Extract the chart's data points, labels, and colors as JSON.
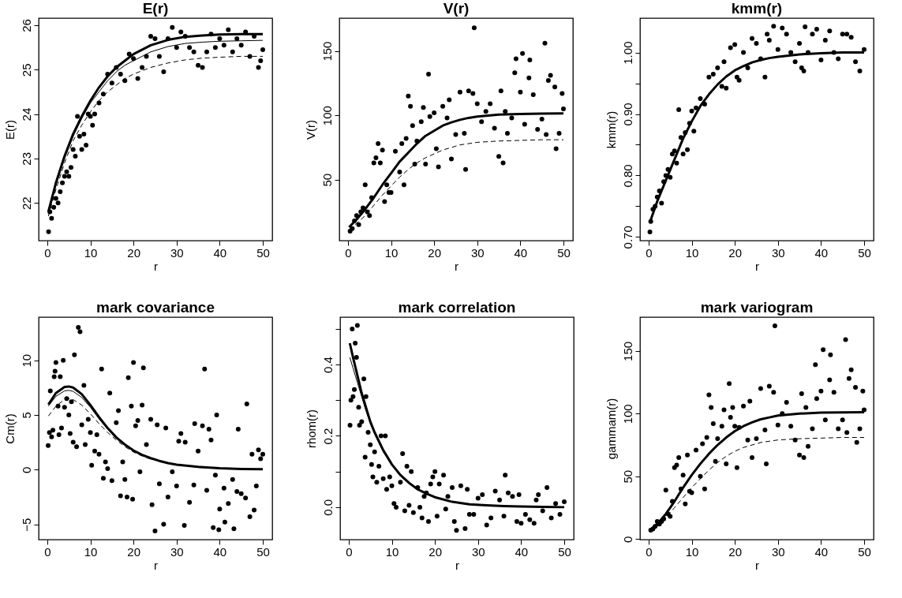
{
  "chart_data": [
    {
      "type": "scatter",
      "title": "E(r)",
      "xlabel": "r",
      "ylabel": "E(r)",
      "xlim": [
        -2,
        52.2
      ],
      "xticks": [
        0,
        10,
        20,
        30,
        40,
        50
      ],
      "ylim": [
        21.15,
        26.16
      ],
      "yticks": [
        22,
        23,
        24,
        25,
        26
      ],
      "series": [
        {
          "type": "scatter",
          "color": "#000000",
          "x": [
            0.3,
            0.6,
            1,
            1.5,
            2,
            2.5,
            3,
            3.5,
            4,
            4.5,
            5,
            5.5,
            6,
            6.5,
            7,
            7.5,
            8,
            8.5,
            9,
            9.5,
            10,
            10.5,
            11,
            12,
            13,
            14,
            15,
            16,
            17,
            18,
            19,
            20,
            21,
            22,
            23,
            24,
            25,
            26,
            27,
            28,
            29,
            30,
            31,
            32,
            33,
            34,
            35,
            36,
            37,
            38,
            39,
            40,
            41,
            42,
            43,
            44,
            45,
            46,
            47,
            48,
            49,
            49.5,
            50
          ],
          "values": [
            21.35,
            21.8,
            21.65,
            21.9,
            22.1,
            22.0,
            22.25,
            22.45,
            22.6,
            22.7,
            22.6,
            22.8,
            23.2,
            23.05,
            23.95,
            23.5,
            23.2,
            23.55,
            23.3,
            24.0,
            23.95,
            23.75,
            24.0,
            24.25,
            24.45,
            24.9,
            24.7,
            25.05,
            24.9,
            24.75,
            25.35,
            25.25,
            24.8,
            25.05,
            25.3,
            25.75,
            25.7,
            25.3,
            24.95,
            25.7,
            25.95,
            25.5,
            25.85,
            25.75,
            25.5,
            25.4,
            25.1,
            25.05,
            25.4,
            25.8,
            25.5,
            25.7,
            25.55,
            25.9,
            25.4,
            25.7,
            25.55,
            25.85,
            25.3,
            25.75,
            25.05,
            25.2,
            25.45
          ]
        },
        {
          "type": "line",
          "color": "#000000",
          "x": [
            0.25,
            2,
            4,
            6,
            8,
            10,
            12,
            14,
            16,
            18,
            20,
            24,
            28,
            32,
            36,
            40,
            45,
            50
          ],
          "values": [
            21.8,
            22.45,
            23.05,
            23.55,
            23.95,
            24.3,
            24.6,
            24.85,
            25.05,
            25.2,
            25.35,
            25.55,
            25.67,
            25.74,
            25.77,
            25.79,
            25.8,
            25.8
          ]
        },
        {
          "type": "line",
          "color": "#000000",
          "x": [
            0.25,
            2,
            4,
            6,
            8,
            10,
            12,
            14,
            16,
            18,
            20,
            24,
            28,
            32,
            36,
            40,
            45,
            50
          ],
          "values": [
            21.75,
            22.4,
            23.0,
            23.5,
            23.9,
            24.25,
            24.5,
            24.75,
            24.95,
            25.1,
            25.2,
            25.4,
            25.52,
            25.59,
            25.62,
            25.64,
            25.65,
            25.66
          ]
        },
        {
          "type": "line",
          "color": "#000000",
          "line_style": "dashed",
          "x": [
            0.25,
            2,
            4,
            6,
            8,
            10,
            12,
            14,
            16,
            18,
            20,
            24,
            28,
            32,
            36,
            40,
            45,
            50
          ],
          "values": [
            21.7,
            22.3,
            22.9,
            23.4,
            23.75,
            24.05,
            24.3,
            24.5,
            24.65,
            24.8,
            24.9,
            25.05,
            25.15,
            25.22,
            25.26,
            25.28,
            25.3,
            25.3
          ]
        }
      ]
    },
    {
      "type": "scatter",
      "title": "V(r)",
      "xlabel": "r",
      "ylabel": "V(r)",
      "xlim": [
        -2,
        52.2
      ],
      "xticks": [
        0,
        10,
        20,
        30,
        40,
        50
      ],
      "ylim": [
        2.6,
        175.5
      ],
      "yticks": [
        50,
        100,
        150
      ],
      "series": [
        {
          "type": "scatter",
          "color": "#000000",
          "x": [
            0.5,
            1,
            1.5,
            2,
            2.5,
            3,
            3.5,
            4,
            4.5,
            5,
            5.5,
            6,
            6.5,
            7,
            7.5,
            8,
            8.5,
            9,
            9.5,
            10,
            11,
            12,
            12.5,
            13,
            13.5,
            14,
            14.5,
            15,
            15.5,
            16,
            17,
            17.5,
            18,
            18.7,
            19,
            20,
            20.5,
            21,
            22,
            23,
            23.5,
            24,
            25,
            26,
            27,
            27.3,
            28,
            29,
            29.3,
            30,
            31,
            32,
            33,
            34,
            35,
            35.5,
            36,
            36.5,
            37,
            38,
            38.7,
            39,
            40,
            40.5,
            41,
            42,
            42.2,
            43,
            44,
            45,
            45.7,
            46,
            46.5,
            47,
            48,
            48.3,
            49,
            49.7,
            50
          ],
          "values": [
            10,
            12,
            18,
            22,
            15,
            25,
            28,
            46,
            25,
            22,
            36,
            63,
            67,
            78,
            63,
            73,
            33,
            46,
            40,
            40,
            72,
            56,
            78,
            46,
            82,
            115,
            107,
            92,
            62,
            80,
            95,
            106,
            62,
            132,
            99,
            102,
            74,
            60,
            107,
            98,
            112,
            66,
            85,
            118,
            86,
            58,
            119,
            117,
            168,
            109,
            95,
            103,
            109,
            90,
            68,
            119,
            63,
            103,
            86,
            98,
            133,
            144,
            118,
            148,
            93,
            129,
            143,
            116,
            89,
            97,
            156,
            85,
            127,
            131,
            122,
            74,
            86,
            117,
            105
          ]
        },
        {
          "type": "line",
          "color": "#000000",
          "x": [
            0.25,
            2,
            4,
            6,
            8,
            10,
            12,
            14,
            16,
            18,
            20,
            22,
            24,
            26,
            28,
            30,
            35,
            40,
            45,
            50
          ],
          "values": [
            13,
            19,
            27,
            36,
            46,
            55,
            64,
            71,
            78,
            84,
            88,
            92,
            94.5,
            96.5,
            98,
            99,
            100.5,
            101,
            101.3,
            101.5
          ]
        },
        {
          "type": "line",
          "color": "#000000",
          "line_style": "dashed",
          "x": [
            0.25,
            2,
            4,
            6,
            8,
            10,
            12,
            14,
            16,
            18,
            20,
            22,
            24,
            26,
            28,
            30,
            35,
            40,
            45,
            50
          ],
          "values": [
            11,
            16,
            22,
            30,
            38,
            45,
            52,
            58,
            63,
            67,
            70,
            73,
            75,
            77,
            78,
            79,
            80,
            80.5,
            81,
            81
          ]
        }
      ]
    },
    {
      "type": "scatter",
      "title": "kmm(r)",
      "xlabel": "r",
      "ylabel": "kmm(r)",
      "xlim": [
        -2,
        52.2
      ],
      "xticks": [
        0,
        10,
        20,
        30,
        40,
        50
      ],
      "ylim": [
        0.694,
        1.056
      ],
      "yticks": [
        {
          "value": 0.7,
          "label": "0.70"
        },
        {
          "value": 0.75,
          "label": null
        },
        {
          "value": 0.8,
          "label": "0.80"
        },
        {
          "value": 0.85,
          "label": null
        },
        {
          "value": 0.9,
          "label": "0.90"
        },
        {
          "value": 0.95,
          "label": null
        },
        {
          "value": 1.0,
          "label": "1.00"
        }
      ],
      "series": [
        {
          "type": "scatter",
          "color": "#000000",
          "x": [
            0.3,
            0.5,
            1,
            1.5,
            2,
            2.5,
            3,
            3.5,
            4,
            4.5,
            5,
            5.5,
            6,
            6.5,
            7,
            7.5,
            8,
            8.5,
            9,
            9.5,
            10,
            10.5,
            11,
            12,
            13,
            14,
            15,
            16,
            17,
            17.5,
            18,
            19,
            20,
            20.5,
            21,
            22,
            23,
            24,
            25,
            26,
            27,
            27.5,
            28,
            29,
            30,
            31,
            32,
            33,
            34,
            35,
            35.5,
            36,
            36.3,
            37,
            38,
            39,
            40,
            41,
            42,
            43,
            44,
            45,
            46,
            47,
            48,
            49,
            50
          ],
          "values": [
            0.708,
            0.725,
            0.745,
            0.75,
            0.765,
            0.775,
            0.755,
            0.79,
            0.8,
            0.81,
            0.797,
            0.835,
            0.84,
            0.82,
            0.907,
            0.862,
            0.835,
            0.87,
            0.842,
            0.885,
            0.905,
            0.872,
            0.91,
            0.925,
            0.916,
            0.96,
            0.965,
            0.975,
            0.945,
            0.985,
            0.942,
            1.008,
            1.013,
            0.96,
            0.955,
            1.0,
            0.975,
            1.023,
            1.015,
            0.99,
            0.96,
            1.03,
            1.02,
            1.043,
            1.005,
            1.04,
            1.03,
            1.0,
            0.985,
            1.015,
            0.975,
            0.97,
            1.042,
            1.0,
            1.03,
            1.038,
            0.988,
            1.02,
            1.035,
            1.0,
            0.99,
            1.03,
            1.03,
            1.025,
            0.985,
            0.97,
            1.005
          ]
        },
        {
          "type": "line",
          "color": "#000000",
          "x": [
            0.25,
            2,
            4,
            6,
            8,
            10,
            12,
            14,
            16,
            18,
            20,
            22,
            24,
            26,
            28,
            30,
            35,
            40,
            45,
            50
          ],
          "values": [
            0.723,
            0.758,
            0.792,
            0.826,
            0.86,
            0.888,
            0.913,
            0.932,
            0.948,
            0.961,
            0.971,
            0.978,
            0.984,
            0.988,
            0.991,
            0.993,
            0.997,
            0.999,
            1.0,
            1.0
          ]
        }
      ]
    },
    {
      "type": "scatter",
      "title": "mark covariance",
      "xlabel": "r",
      "ylabel": "Cm(r)",
      "xlim": [
        -2,
        52.2
      ],
      "xticks": [
        0,
        10,
        20,
        30,
        40,
        50
      ],
      "ylim": [
        -6.4,
        13.94
      ],
      "yticks": [
        -5,
        0,
        5,
        10
      ],
      "series": [
        {
          "type": "scatter",
          "color": "#000000",
          "x": [
            0.2,
            0.5,
            0.7,
            1,
            1.3,
            1.6,
            1.8,
            2,
            2.5,
            2.7,
            3,
            3.3,
            3.7,
            4,
            4.5,
            5,
            5.3,
            5.6,
            6,
            6.3,
            6.8,
            7.2,
            7.6,
            8,
            8.5,
            8.8,
            9.5,
            10,
            10.3,
            11,
            11.5,
            12,
            12.6,
            13,
            13.5,
            14,
            14.5,
            15,
            16,
            16.5,
            17,
            17.5,
            18,
            18.5,
            18.8,
            19.5,
            19.8,
            20,
            20.5,
            21,
            21.5,
            22,
            22.3,
            23,
            24,
            24.3,
            25,
            25.5,
            26,
            27,
            27.5,
            28,
            29,
            30,
            30.5,
            31,
            31.8,
            32,
            33,
            34,
            34.2,
            35,
            36,
            36.5,
            37,
            37.5,
            38,
            38.5,
            39,
            39.3,
            39.8,
            40,
            41,
            41.2,
            42,
            43,
            43.3,
            44,
            44.3,
            45,
            46,
            46.3,
            47,
            47.5,
            48,
            48.5,
            49,
            49.5,
            50
          ],
          "values": [
            2.2,
            3.4,
            7.2,
            3.0,
            3.6,
            8.5,
            9.0,
            9.8,
            5.8,
            3.2,
            8.5,
            3.8,
            10.0,
            5.7,
            6.5,
            5.0,
            3.3,
            6.2,
            2.5,
            10.5,
            2.1,
            13.0,
            12.6,
            4.1,
            7.7,
            2.3,
            4.6,
            3.4,
            0.4,
            1.7,
            3.2,
            1.4,
            9.2,
            -0.8,
            0.7,
            0.1,
            7.0,
            -1.0,
            4.3,
            5.4,
            -2.4,
            0.7,
            -0.9,
            -2.5,
            8.4,
            5.8,
            -2.7,
            9.8,
            4.0,
            4.5,
            -0.2,
            5.9,
            9.3,
            2.3,
            4.6,
            -3.2,
            -5.6,
            4.1,
            -1.3,
            -5.0,
            3.8,
            -2.5,
            -0.2,
            -1.5,
            2.6,
            3.3,
            -5.1,
            2.5,
            -3.0,
            -1.4,
            4.2,
            1.7,
            4.0,
            9.2,
            -1.9,
            3.7,
            2.7,
            -5.3,
            -0.5,
            5.0,
            -5.5,
            -3.6,
            -1.7,
            -4.8,
            -3.1,
            -0.9,
            -5.4,
            -2.0,
            3.7,
            -2.2,
            -2.6,
            6.0,
            -4.3,
            1.4,
            -3.7,
            -1.5,
            1.8,
            1.0,
            1.4
          ]
        },
        {
          "type": "line",
          "color": "#000000",
          "x": [
            0.25,
            2,
            4,
            5,
            6,
            8,
            10,
            12,
            14,
            16,
            18,
            20,
            22,
            24,
            26,
            28,
            30,
            35,
            40,
            45,
            50
          ],
          "values": [
            5.95,
            7.0,
            7.55,
            7.6,
            7.5,
            6.9,
            5.9,
            4.8,
            3.8,
            2.95,
            2.3,
            1.75,
            1.35,
            1.05,
            0.8,
            0.6,
            0.45,
            0.25,
            0.12,
            0.06,
            0.03
          ]
        },
        {
          "type": "line",
          "color": "#000000",
          "x": [
            0.25,
            2,
            4,
            5,
            6,
            8,
            10,
            12,
            14,
            16,
            18,
            20,
            22,
            24,
            26,
            28,
            30,
            35,
            40,
            45,
            50
          ],
          "values": [
            5.8,
            6.7,
            7.2,
            7.25,
            7.15,
            6.6,
            5.7,
            4.65,
            3.7,
            2.85,
            2.2,
            1.7,
            1.3,
            1.0,
            0.75,
            0.58,
            0.43,
            0.22,
            0.1,
            0.05,
            0.02
          ]
        },
        {
          "type": "line",
          "color": "#000000",
          "line_style": "dashed",
          "x": [
            0.25,
            2,
            4,
            5,
            6,
            8,
            10,
            12,
            14,
            16,
            18,
            20,
            22,
            24
          ],
          "values": [
            4.9,
            5.8,
            6.4,
            6.5,
            6.4,
            5.9,
            5.1,
            4.2,
            3.4,
            2.7,
            2.1,
            1.6,
            1.25,
            0.95
          ]
        }
      ]
    },
    {
      "type": "scatter",
      "title": "mark correlation",
      "xlabel": "r",
      "ylabel": "rhom(r)",
      "xlim": [
        -2,
        52.2
      ],
      "xticks": [
        0,
        10,
        20,
        30,
        40,
        50
      ],
      "ylim": [
        -0.091,
        0.533
      ],
      "yticks": [
        {
          "value": 0,
          "label": "0.0"
        },
        {
          "value": 0.1,
          "label": null
        },
        {
          "value": 0.2,
          "label": "0.2"
        },
        {
          "value": 0.3,
          "label": null
        },
        {
          "value": 0.4,
          "label": "0.4"
        },
        {
          "value": 0.5,
          "label": null
        }
      ],
      "series": [
        {
          "type": "scatter",
          "color": "#000000",
          "x": [
            0.3,
            0.5,
            0.8,
            1,
            1.3,
            1.5,
            1.8,
            2,
            2.3,
            2.5,
            3,
            3.5,
            3.8,
            4,
            4.5,
            5,
            5.3,
            5.6,
            6,
            6.5,
            7,
            7.5,
            8,
            8.5,
            8.8,
            9.5,
            10,
            10.5,
            11,
            12,
            12.5,
            13,
            13.5,
            14,
            14.5,
            15,
            16,
            16.5,
            17,
            17.5,
            18,
            18.5,
            19,
            19.5,
            20,
            20.5,
            21,
            22,
            22.5,
            23,
            24,
            24.5,
            25,
            26,
            27,
            27.5,
            28,
            29,
            30,
            31,
            32,
            33,
            34,
            35,
            36,
            36.3,
            37,
            38,
            39,
            39.5,
            40,
            41,
            42,
            43,
            43.5,
            44,
            45,
            46,
            47,
            48,
            49,
            50
          ],
          "values": [
            0.23,
            0.3,
            0.5,
            0.31,
            0.33,
            0.46,
            0.42,
            0.51,
            0.28,
            0.23,
            0.24,
            0.36,
            0.14,
            0.31,
            0.21,
            0.175,
            0.12,
            0.085,
            0.155,
            0.07,
            0.115,
            0.2,
            0.08,
            0.2,
            0.05,
            0.085,
            0.06,
            0.01,
            0.0,
            0.07,
            0.15,
            -0.01,
            0.115,
            0.005,
            0.1,
            -0.015,
            0.055,
            0.0,
            -0.03,
            0.03,
            0.04,
            -0.04,
            0.065,
            0.085,
            0.1,
            -0.025,
            0.065,
            0.09,
            -0.005,
            0.03,
            0.055,
            -0.04,
            -0.065,
            0.06,
            -0.06,
            0.05,
            -0.02,
            -0.02,
            0.025,
            0.035,
            -0.05,
            -0.03,
            0.045,
            0.02,
            -0.025,
            0.09,
            0.04,
            0.03,
            -0.04,
            0.035,
            -0.045,
            -0.02,
            -0.035,
            -0.045,
            0.02,
            0.035,
            -0.01,
            0.055,
            -0.03,
            0.01,
            -0.02,
            0.015
          ]
        },
        {
          "type": "line",
          "color": "#000000",
          "x": [
            0.25,
            1,
            2,
            3,
            4,
            5,
            6,
            8,
            10,
            12,
            14,
            16,
            18,
            20,
            24,
            28,
            32,
            36,
            40,
            45,
            50
          ],
          "values": [
            0.46,
            0.42,
            0.37,
            0.32,
            0.28,
            0.24,
            0.21,
            0.16,
            0.12,
            0.09,
            0.068,
            0.05,
            0.038,
            0.028,
            0.015,
            0.008,
            0.005,
            0.003,
            0.002,
            0.001,
            0.0
          ]
        },
        {
          "type": "line",
          "color": "#000000",
          "x": [
            0.25,
            1,
            2,
            3,
            4,
            5,
            6,
            8,
            10,
            12,
            14,
            16,
            18,
            20,
            24,
            28,
            32,
            36,
            40,
            45,
            50
          ],
          "values": [
            0.42,
            0.39,
            0.35,
            0.31,
            0.27,
            0.235,
            0.205,
            0.155,
            0.118,
            0.088,
            0.066,
            0.049,
            0.037,
            0.027,
            0.015,
            0.008,
            0.005,
            0.003,
            0.002,
            0.001,
            0.0
          ]
        }
      ]
    },
    {
      "type": "scatter",
      "title": "mark variogram",
      "xlabel": "r",
      "ylabel": "gammam(r)",
      "xlim": [
        -2,
        52.2
      ],
      "xticks": [
        0,
        10,
        20,
        30,
        40,
        50
      ],
      "ylim": [
        -0.5,
        177
      ],
      "yticks": [
        0,
        50,
        100,
        150
      ],
      "series": [
        {
          "type": "scatter",
          "color": "#000000",
          "x": [
            0.5,
            1,
            1.5,
            2,
            2.5,
            3,
            3.5,
            4,
            4.5,
            5,
            5.5,
            6,
            6.5,
            7,
            7.5,
            8,
            8.5,
            9,
            9.5,
            10,
            11,
            12,
            12.5,
            13,
            13.5,
            14,
            14.5,
            15,
            15.5,
            16,
            17,
            17.5,
            18,
            18.7,
            19,
            19.5,
            20,
            20.5,
            21,
            22,
            23,
            23.5,
            24,
            25,
            26,
            27,
            27.3,
            28,
            29,
            29.3,
            30,
            31,
            32,
            33,
            34,
            35,
            35.5,
            36,
            36.5,
            37,
            38,
            38.7,
            39,
            40,
            40.5,
            41,
            42,
            42.2,
            43,
            44,
            45,
            45.7,
            46,
            46.5,
            47,
            48,
            48.3,
            49,
            49.7,
            50
          ],
          "values": [
            7,
            8,
            10,
            14,
            12,
            14,
            16,
            39,
            20,
            18,
            30,
            57,
            59,
            65,
            40,
            51,
            28,
            67,
            38,
            37,
            71,
            50,
            76,
            40,
            81,
            115,
            105,
            92,
            62,
            80,
            90,
            103,
            60,
            124,
            97,
            105,
            90,
            57,
            89,
            106,
            79,
            110,
            65,
            80,
            120,
            87,
            60,
            122,
            117,
            170,
            91,
            100,
            109,
            90,
            79,
            67,
            116,
            65,
            105,
            74,
            88,
            139,
            112,
            118,
            151,
            95,
            127,
            147,
            117,
            88,
            95,
            159,
            85,
            128,
            135,
            121,
            77,
            88,
            118,
            103
          ]
        },
        {
          "type": "line",
          "color": "#000000",
          "x": [
            0.25,
            2,
            4,
            6,
            8,
            10,
            12,
            14,
            16,
            18,
            20,
            22,
            24,
            26,
            28,
            30,
            35,
            40,
            45,
            50
          ],
          "values": [
            7,
            12,
            20,
            30,
            41,
            51,
            60,
            68,
            75,
            81,
            86,
            90,
            93,
            95.5,
            97,
            98.5,
            100,
            100.8,
            101,
            101.2
          ]
        },
        {
          "type": "line",
          "color": "#000000",
          "line_style": "dashed",
          "x": [
            0.25,
            2,
            4,
            6,
            8,
            10,
            12,
            14,
            16,
            18,
            20,
            22,
            24,
            26,
            28,
            30,
            35,
            40,
            45,
            50
          ],
          "values": [
            6,
            10,
            17,
            25,
            33,
            41,
            48,
            55,
            61,
            66,
            70,
            73,
            75,
            77,
            78,
            79,
            80,
            80.5,
            81,
            81
          ]
        }
      ]
    }
  ]
}
